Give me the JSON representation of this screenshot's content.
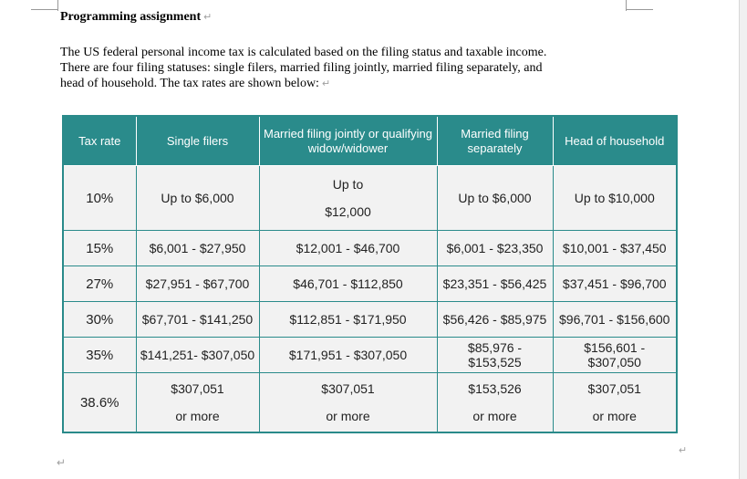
{
  "heading": "Programming assignment",
  "paragraph": {
    "line1": "The US federal personal income tax is calculated based on the filing status and taxable income.",
    "line2": "There are four filing statuses: single filers, married filing jointly, married filing separately, and",
    "line3": "head of household. The tax rates are shown below:"
  },
  "para_mark": "↵",
  "table": {
    "headers": {
      "rate": "Tax rate",
      "single": "Single filers",
      "joint": "Married filing jointly or qualifying widow/widower",
      "separate": "Married filing separately",
      "hoh": "Head of household"
    },
    "rows": [
      {
        "rate": "10%",
        "single": "Up to $6,000",
        "joint_a": "Up to",
        "joint_b": "$12,000",
        "separate": "Up to $6,000",
        "hoh": "Up to $10,000"
      },
      {
        "rate": "15%",
        "single": "$6,001 - $27,950",
        "joint": "$12,001 - $46,700",
        "separate": "$6,001 - $23,350",
        "hoh": "$10,001 - $37,450"
      },
      {
        "rate": "27%",
        "single": "$27,951 - $67,700",
        "joint": "$46,701 - $112,850",
        "separate": "$23,351 - $56,425",
        "hoh": "$37,451 - $96,700"
      },
      {
        "rate": "30%",
        "single": "$67,701 - $141,250",
        "joint": "$112,851 - $171,950",
        "separate": "$56,426 - $85,975",
        "hoh": "$96,701 - $156,600"
      },
      {
        "rate": "35%",
        "single": "$141,251- $307,050",
        "joint": "$171,951 - $307,050",
        "separate": "$85,976 - $153,525",
        "hoh": "$156,601 - $307,050"
      },
      {
        "rate": "38.6%",
        "single_a": "$307,051",
        "single_b": "or more",
        "joint_a": "$307,051",
        "joint_b": "or more",
        "separate_a": "$153,526",
        "separate_b": "or more",
        "hoh_a": "$307,051",
        "hoh_b": "or more"
      }
    ]
  }
}
